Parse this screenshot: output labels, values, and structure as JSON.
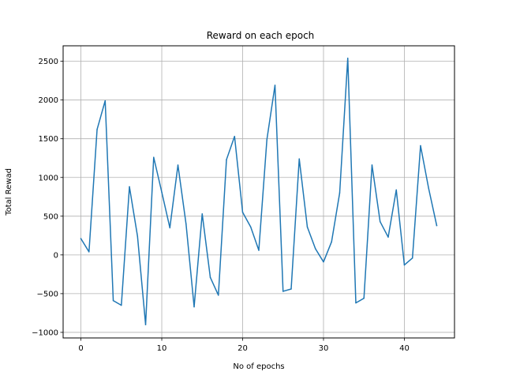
{
  "chart_data": {
    "type": "line",
    "title": "Reward on each epoch",
    "xlabel": "No of epochs",
    "ylabel": "Total Rewad",
    "xlim": [
      -2.2,
      46.2
    ],
    "ylim": [
      -1072,
      2700
    ],
    "xticks": [
      0,
      10,
      20,
      30,
      40
    ],
    "yticks": [
      -1000,
      -500,
      0,
      500,
      1000,
      1500,
      2000,
      2500
    ],
    "grid": true,
    "line_color": "#1f77b4",
    "series": [
      {
        "x": [
          0,
          1,
          2,
          3,
          4,
          5,
          6,
          7,
          8,
          9,
          10,
          11,
          12,
          13,
          14,
          15,
          16,
          17,
          18,
          19,
          20,
          21,
          22,
          23,
          24,
          25,
          26,
          27,
          28,
          29,
          30,
          31,
          32,
          33,
          34,
          35,
          36,
          37,
          38,
          39,
          40,
          41,
          42,
          43,
          44
        ],
        "values": [
          210,
          40,
          1620,
          1990,
          -590,
          -650,
          880,
          240,
          -900,
          1260,
          810,
          350,
          1160,
          400,
          -670,
          530,
          -290,
          -520,
          1230,
          1530,
          550,
          360,
          60,
          1490,
          2190,
          -470,
          -440,
          1240,
          360,
          80,
          -90,
          170,
          800,
          2540,
          -620,
          -560,
          1160,
          430,
          230,
          840,
          -130,
          -40,
          1410,
          860,
          380
        ]
      }
    ]
  }
}
